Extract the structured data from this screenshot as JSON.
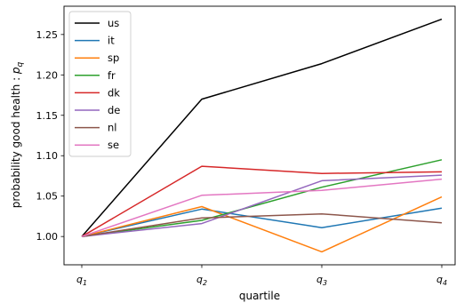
{
  "chart_data": {
    "type": "line",
    "categories": [
      "q1",
      "q2",
      "q3",
      "q4"
    ],
    "xlabel": "quartile",
    "ylabel_text": "probability good health : ",
    "ylabel_symbol": "p",
    "ylabel_subscript": "q",
    "ylim": [
      0.965,
      1.285
    ],
    "yticks": [
      "1.00",
      "1.05",
      "1.10",
      "1.15",
      "1.20",
      "1.25"
    ],
    "legend_position": "upper-left",
    "grid": false,
    "series": [
      {
        "name": "us",
        "color": "#000000",
        "values": [
          1.0,
          1.17,
          1.214,
          1.269
        ]
      },
      {
        "name": "it",
        "color": "#1f77b4",
        "values": [
          1.0,
          1.034,
          1.011,
          1.035
        ]
      },
      {
        "name": "sp",
        "color": "#ff7f0e",
        "values": [
          1.0,
          1.037,
          0.981,
          1.049
        ]
      },
      {
        "name": "fr",
        "color": "#2ca02c",
        "values": [
          1.0,
          1.02,
          1.061,
          1.095
        ]
      },
      {
        "name": "dk",
        "color": "#d62728",
        "values": [
          1.0,
          1.087,
          1.078,
          1.08
        ]
      },
      {
        "name": "de",
        "color": "#9467bd",
        "values": [
          1.0,
          1.016,
          1.069,
          1.076
        ]
      },
      {
        "name": "nl",
        "color": "#8c564b",
        "values": [
          1.0,
          1.023,
          1.028,
          1.017
        ]
      },
      {
        "name": "se",
        "color": "#e377c2",
        "values": [
          1.0,
          1.051,
          1.057,
          1.071
        ]
      }
    ]
  }
}
